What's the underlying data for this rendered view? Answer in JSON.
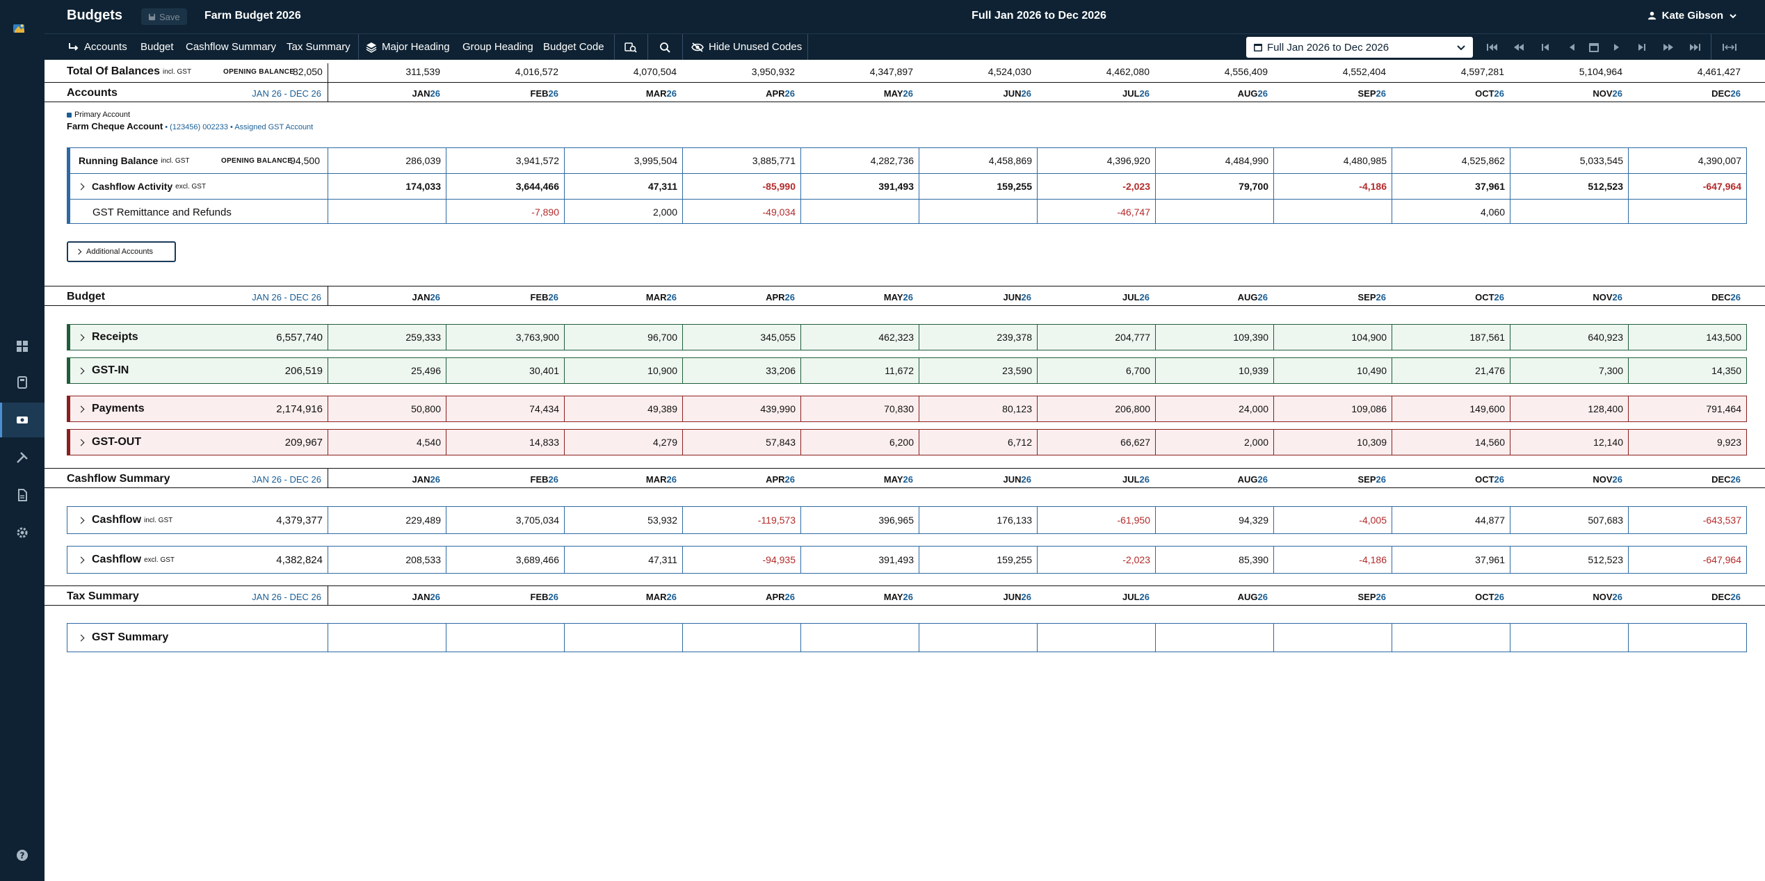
{
  "app": {
    "title": "Budgets",
    "save_label": "Save",
    "budget_name": "Farm Budget 2026",
    "period_title": "Full Jan 2026 to Dec 2026",
    "user_name": "Kate Gibson"
  },
  "toolbar": {
    "accounts": "Accounts",
    "budget": "Budget",
    "cashflow_summary": "Cashflow Summary",
    "tax_summary": "Tax Summary",
    "major_heading": "Major Heading",
    "group_heading": "Group Heading",
    "budget_code": "Budget Code",
    "hide_unused": "Hide Unused Codes",
    "range_value": "Full Jan 2026 to Dec 2026"
  },
  "months": [
    {
      "m": "JAN",
      "y": "26"
    },
    {
      "m": "FEB",
      "y": "26"
    },
    {
      "m": "MAR",
      "y": "26"
    },
    {
      "m": "APR",
      "y": "26"
    },
    {
      "m": "MAY",
      "y": "26"
    },
    {
      "m": "JUN",
      "y": "26"
    },
    {
      "m": "JUL",
      "y": "26"
    },
    {
      "m": "AUG",
      "y": "26"
    },
    {
      "m": "SEP",
      "y": "26"
    },
    {
      "m": "OCT",
      "y": "26"
    },
    {
      "m": "NOV",
      "y": "26"
    },
    {
      "m": "DEC",
      "y": "26"
    }
  ],
  "total_balances": {
    "label": "Total Of Balances",
    "tag": "incl. GST",
    "ob_label": "OPENING BALANCE",
    "ob_value": "82,050",
    "values": [
      "311,539",
      "4,016,572",
      "4,070,504",
      "3,950,932",
      "4,347,897",
      "4,524,030",
      "4,462,080",
      "4,556,409",
      "4,552,404",
      "4,597,281",
      "5,104,964",
      "4,461,427"
    ]
  },
  "accounts": {
    "title": "Accounts",
    "range": "JAN 26 - DEC 26",
    "primary_label": "Primary Account",
    "account_name": "Farm Cheque Account",
    "account_meta": "• (123456) 002233 • Assigned GST Account",
    "running_balance": {
      "label": "Running Balance",
      "tag": "incl. GST",
      "ob_label": "OPENING BALANCE",
      "ob_value": "94,500",
      "values": [
        "286,039",
        "3,941,572",
        "3,995,504",
        "3,885,771",
        "4,282,736",
        "4,458,869",
        "4,396,920",
        "4,484,990",
        "4,480,985",
        "4,525,862",
        "5,033,545",
        "4,390,007"
      ]
    },
    "cashflow_activity": {
      "label": "Cashflow Activity",
      "tag": "excl. GST",
      "values": [
        "174,033",
        "3,644,466",
        "47,311",
        "-85,990",
        "391,493",
        "159,255",
        "-2,023",
        "79,700",
        "-4,186",
        "37,961",
        "512,523",
        "-647,964"
      ]
    },
    "gst_remit": {
      "label": "GST Remittance and Refunds",
      "values": [
        "",
        "-7,890",
        "2,000",
        "-49,034",
        "",
        "",
        "-46,747",
        "",
        "",
        "4,060",
        "",
        ""
      ]
    },
    "additional_label": "Additional Accounts"
  },
  "budget": {
    "title": "Budget",
    "range": "JAN 26 - DEC 26",
    "rows": [
      {
        "label": "Receipts",
        "total": "6,557,740",
        "values": [
          "259,333",
          "3,763,900",
          "96,700",
          "345,055",
          "462,323",
          "239,378",
          "204,777",
          "109,390",
          "104,900",
          "187,561",
          "640,923",
          "143,500"
        ]
      },
      {
        "label": "GST-IN",
        "total": "206,519",
        "values": [
          "25,496",
          "30,401",
          "10,900",
          "33,206",
          "11,672",
          "23,590",
          "6,700",
          "10,939",
          "10,490",
          "21,476",
          "7,300",
          "14,350"
        ]
      },
      {
        "label": "Payments",
        "total": "2,174,916",
        "values": [
          "50,800",
          "74,434",
          "49,389",
          "439,990",
          "70,830",
          "80,123",
          "206,800",
          "24,000",
          "109,086",
          "149,600",
          "128,400",
          "791,464"
        ]
      },
      {
        "label": "GST-OUT",
        "total": "209,967",
        "values": [
          "4,540",
          "14,833",
          "4,279",
          "57,843",
          "6,200",
          "6,712",
          "66,627",
          "2,000",
          "10,309",
          "14,560",
          "12,140",
          "9,923"
        ]
      }
    ]
  },
  "cashflow_summary": {
    "title": "Cashflow Summary",
    "range": "JAN 26 - DEC 26",
    "rows": [
      {
        "label": "Cashflow",
        "tag": "incl. GST",
        "total": "4,379,377",
        "values": [
          "229,489",
          "3,705,034",
          "53,932",
          "-119,573",
          "396,965",
          "176,133",
          "-61,950",
          "94,329",
          "-4,005",
          "44,877",
          "507,683",
          "-643,537"
        ]
      },
      {
        "label": "Cashflow",
        "tag": "excl. GST",
        "total": "4,382,824",
        "values": [
          "208,533",
          "3,689,466",
          "47,311",
          "-94,935",
          "391,493",
          "159,255",
          "-2,023",
          "85,390",
          "-4,186",
          "37,961",
          "512,523",
          "-647,964"
        ]
      }
    ]
  },
  "tax_summary": {
    "title": "Tax Summary",
    "range": "JAN 26 - DEC 26",
    "gst_summary_label": "GST Summary"
  },
  "colors": {
    "navy": "#0e2233",
    "receipts_accent": "#1f5e3a",
    "payments_accent": "#8b1f1f",
    "accounts_accent": "#2d6aa3",
    "negative": "#b32a2a"
  }
}
